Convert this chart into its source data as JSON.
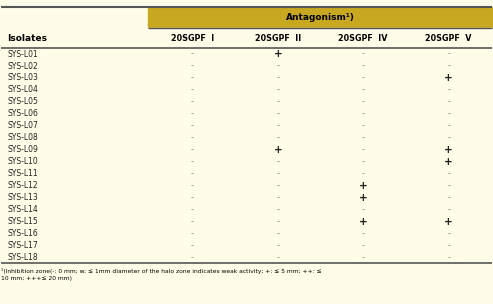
{
  "title_bar_color": "#c8a820",
  "header_bg": "#fffde8",
  "row_bg": "#fffde8",
  "border_color": "#555555",
  "font_color": "#333333",
  "col_header": "Antagonism¹)",
  "col_subheaders": [
    "20SGPF  I",
    "20SGPF  II",
    "20SGPF  IV",
    "20SGPF  V"
  ],
  "row_header": "Isolates",
  "isolates": [
    "SYS-L01",
    "SYS-L02",
    "SYS-L03",
    "SYS-L04",
    "SYS-L05",
    "SYS-L06",
    "SYS-L07",
    "SYS-L08",
    "SYS-L09",
    "SYS-L10",
    "SYS-L11",
    "SYS-L12",
    "SYS-L13",
    "SYS-L14",
    "SYS-L15",
    "SYS-L16",
    "SYS-L17",
    "SYS-L18"
  ],
  "data": [
    [
      "-",
      "+",
      "-",
      "-"
    ],
    [
      "-",
      "-",
      "-",
      "-"
    ],
    [
      "-",
      "-",
      "-",
      "+"
    ],
    [
      "-",
      "-",
      "-",
      "-"
    ],
    [
      "-",
      "-",
      "-",
      "-"
    ],
    [
      "-",
      "-",
      "-",
      "-"
    ],
    [
      "-",
      "-",
      "-",
      "-"
    ],
    [
      "-",
      "-",
      "-",
      "-"
    ],
    [
      "-",
      "+",
      "-",
      "+"
    ],
    [
      "-",
      "-",
      "-",
      "+"
    ],
    [
      "-",
      "-",
      "-",
      "-"
    ],
    [
      "-",
      "-",
      "+",
      "-"
    ],
    [
      "-",
      "-",
      "+",
      "-"
    ],
    [
      "-",
      "-",
      "-",
      "-"
    ],
    [
      "-",
      "-",
      "+",
      "+"
    ],
    [
      "-",
      "-",
      "-",
      "-"
    ],
    [
      "-",
      "-",
      "-",
      "-"
    ],
    [
      "-",
      "-",
      "-",
      "-"
    ]
  ],
  "footnote": "¹)Inhibition zone(-: 0 mm; w: ≤ 1mm diameter of the halo zone indicates weak activity; +: ≤ 5 mm; ++: ≤\n10 mm; +++≤ 20 mm)"
}
